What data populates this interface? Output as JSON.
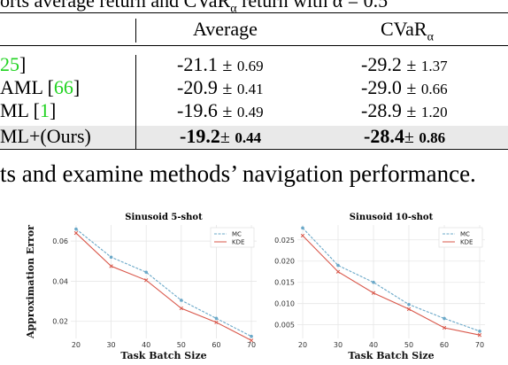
{
  "caption_top": {
    "text_a": "orts average return and CVaR",
    "sub_a": "α",
    "text_b": " return with α = 0.5"
  },
  "table": {
    "headers": {
      "average": "Average",
      "cvar": "CVaR",
      "cvar_sub": "α"
    },
    "rows": [
      {
        "method_prefix": "",
        "method_ref": "25",
        "method_suffix": "]",
        "avg": "-21.1",
        "avg_sd": "0.69",
        "cvar": "-29.2",
        "cvar_sd": "1.37",
        "bold": false
      },
      {
        "method_prefix": "AML [",
        "method_ref": "66",
        "method_suffix": "]",
        "avg": "-20.9",
        "avg_sd": "0.41",
        "cvar": "-29.0",
        "cvar_sd": "0.66",
        "bold": false
      },
      {
        "method_prefix": "ML [",
        "method_ref": "1",
        "method_suffix": "]",
        "avg": "-19.6",
        "avg_sd": "0.49",
        "cvar": "-28.9",
        "cvar_sd": "1.20",
        "bold": false
      },
      {
        "method_prefix": "ML+(Ours)",
        "method_ref": "",
        "method_suffix": "",
        "avg": "-19.2",
        "avg_sd": "0.44",
        "cvar": "-28.4",
        "cvar_sd": "0.86",
        "bold": true
      }
    ],
    "pm_symbol": "±"
  },
  "sentence": "ts and examine methods’ navigation performance.",
  "colors": {
    "mc": "#6aa8c8",
    "kde": "#d9574a",
    "ref_green": "#21d321",
    "highlight": "#e9e9e9"
  },
  "chart_data": [
    {
      "type": "line",
      "title": "Sinusoid 5-shot",
      "xlabel": "Task Batch Size",
      "ylabel": "Approximation Error",
      "x": [
        20,
        30,
        40,
        50,
        60,
        70
      ],
      "xlim": [
        18.5,
        71.5
      ],
      "ylim": [
        0.0115,
        0.068
      ],
      "yticks": [
        0.02,
        0.04,
        0.06
      ],
      "ytick_labels": [
        "0.02",
        "0.04",
        "0.06"
      ],
      "grid": true,
      "legend": "top-right",
      "series": [
        {
          "name": "MC",
          "values": [
            0.066,
            0.052,
            0.0445,
            0.0305,
            0.0215,
            0.0125
          ],
          "marker": "dot",
          "dash": true
        },
        {
          "name": "KDE",
          "values": [
            0.064,
            0.0475,
            0.0405,
            0.0265,
            0.0195,
            0.0105
          ],
          "marker": "x",
          "dash": false
        }
      ]
    },
    {
      "type": "line",
      "title": "Sinusoid 10-shot",
      "xlabel": "Task Batch Size",
      "ylabel": "",
      "x": [
        20,
        30,
        40,
        50,
        60,
        70
      ],
      "xlim": [
        18.5,
        71.5
      ],
      "ylim": [
        0.0018,
        0.0285
      ],
      "yticks": [
        0.005,
        0.01,
        0.015,
        0.02,
        0.025
      ],
      "ytick_labels": [
        "0.005",
        "0.010",
        "0.015",
        "0.020",
        "0.025"
      ],
      "grid": true,
      "legend": "top-right",
      "series": [
        {
          "name": "MC",
          "values": [
            0.0278,
            0.019,
            0.015,
            0.0098,
            0.0065,
            0.0035
          ],
          "marker": "dot",
          "dash": true
        },
        {
          "name": "KDE",
          "values": [
            0.026,
            0.0175,
            0.0125,
            0.0087,
            0.0043,
            0.0026
          ],
          "marker": "x",
          "dash": false
        }
      ]
    }
  ]
}
